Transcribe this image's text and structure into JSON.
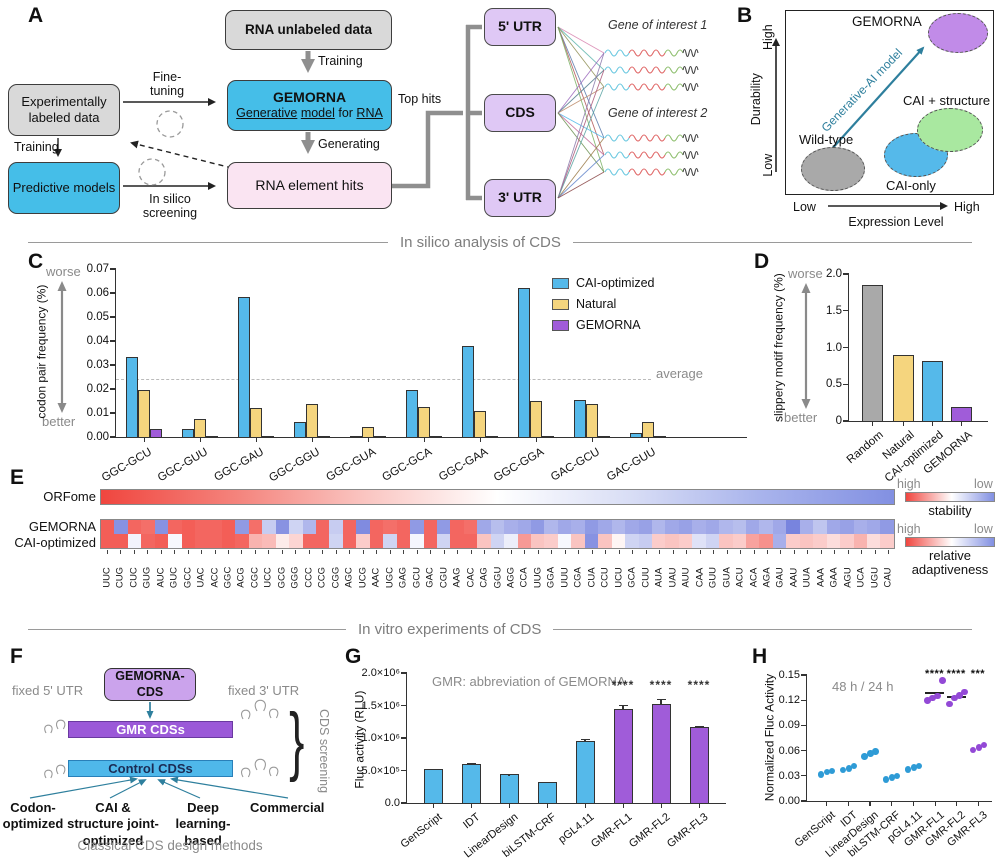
{
  "section_headers": {
    "in_silico": "In silico analysis of CDS",
    "in_vitro": "In vitro experiments of CDS"
  },
  "panels": {
    "a": {
      "label": "A",
      "boxes": {
        "rna_unlabeled": "RNA unlabeled data",
        "experimentally_labeled": "Experimentally labeled data",
        "gemorna_title": "GEMORNA",
        "gemorna_sub": {
          "w1": "Generative",
          "w2": "model",
          "w3": "for",
          "w4": "RNA"
        },
        "predictive_models": "Predictive models",
        "rna_element_hits": "RNA element hits",
        "utr5": "5' UTR",
        "cds": "CDS",
        "utr3": "3' UTR"
      },
      "labels": {
        "training_top": "Training",
        "fine_tuning": "Fine-tuning",
        "training_left": "Training",
        "generating": "Generating",
        "in_silico_screening": "In silico screening",
        "top_hits": "Top hits",
        "gene1": "Gene of interest 1",
        "gene2": "Gene of interest 2"
      }
    },
    "b": {
      "label": "B",
      "ellipses": [
        {
          "name": "wild-type",
          "label": "Wild-type",
          "fill": "#A9A9A9"
        },
        {
          "name": "cai-only",
          "label": "CAI-only",
          "fill": "#55B9EA"
        },
        {
          "name": "cai-structure",
          "label": "CAI + structure",
          "fill": "#A9E8A0"
        },
        {
          "name": "gemorna",
          "label": "GEMORNA",
          "fill": "#C18BE8"
        }
      ],
      "arrow_label": "Generative-AI model",
      "x_low": "Low",
      "x_high": "High",
      "x_label": "Expression Level",
      "y_low": "Low",
      "y_high": "High",
      "y_label": "Durability"
    },
    "c": {
      "label": "C",
      "worse": "worse",
      "better": "better",
      "average_label": "average",
      "chart_data": {
        "type": "bar",
        "ylabel": "codon pair frequency (%)",
        "ylim": [
          0,
          0.07
        ],
        "yticks": [
          "0.00",
          "0.01",
          "0.02",
          "0.03",
          "0.04",
          "0.05",
          "0.06",
          "0.07"
        ],
        "average_line": 0.024,
        "categories": [
          "GGC-GCU",
          "GGC-GUU",
          "GGC-GAU",
          "GGC-GGU",
          "GGC-GUA",
          "GGC-GCA",
          "GGC-GAA",
          "GGC-GGA",
          "GAC-GCU",
          "GAC-GUU"
        ],
        "series": [
          {
            "name": "CAI-optimized",
            "color": "#55B9EA",
            "values": [
              0.0335,
              0.0033,
              0.0585,
              0.0063,
              0.0003,
              0.0197,
              0.038,
              0.062,
              0.0155,
              0.0015
            ]
          },
          {
            "name": "Natural",
            "color": "#F5D57E",
            "values": [
              0.0195,
              0.0077,
              0.0122,
              0.0137,
              0.0042,
              0.0127,
              0.0108,
              0.0148,
              0.0138,
              0.0063
            ]
          },
          {
            "name": "GEMORNA",
            "color": "#A05CD9",
            "values": [
              0.0033,
              0.0002,
              0.0002,
              0.0002,
              0.0002,
              0.0002,
              0.0003,
              0.0003,
              0.0004,
              0.0002
            ]
          }
        ],
        "legend_position": "upper right"
      }
    },
    "d": {
      "label": "D",
      "worse": "worse",
      "better": "better",
      "chart_data": {
        "type": "bar",
        "ylabel": "slippery motif frequency (%)",
        "ylim": [
          0,
          2.0
        ],
        "yticks": [
          "0",
          "0.5",
          "1.0",
          "1.5",
          "2.0"
        ],
        "categories": [
          "Random",
          "Natural",
          "CAI-optimized",
          "GEMORNA"
        ],
        "values": [
          1.85,
          0.9,
          0.82,
          0.19
        ],
        "colors": [
          "#A9A9A9",
          "#F5D57E",
          "#55B9EA",
          "#A05CD9"
        ]
      }
    },
    "e": {
      "label": "E",
      "row_labels": [
        "ORFome",
        "GEMORNA",
        "CAI-optimized"
      ],
      "legend": {
        "stability": {
          "title": "stability",
          "high": "high",
          "low": "low"
        },
        "adaptiveness": {
          "title": "relative adaptiveness",
          "high": "high",
          "low": "low"
        }
      },
      "chart_data": {
        "type": "heatmap",
        "codons": [
          "UUC",
          "CUG",
          "CUC",
          "GUG",
          "AUC",
          "GUC",
          "GCC",
          "UAC",
          "ACC",
          "GGC",
          "ACG",
          "CGC",
          "UCC",
          "GCG",
          "GGG",
          "CCC",
          "CCG",
          "CGG",
          "AGC",
          "UCG",
          "AAC",
          "UGC",
          "GAG",
          "GCU",
          "GAC",
          "CGU",
          "AAG",
          "CAC",
          "CAG",
          "GGU",
          "AGG",
          "CCA",
          "UUG",
          "GGA",
          "UUU",
          "CGA",
          "CUA",
          "CCU",
          "UCU",
          "GCA",
          "CUU",
          "AUA",
          "UAU",
          "AUU",
          "CAA",
          "GUU",
          "GUA",
          "ACU",
          "ACA",
          "AGA",
          "GAU",
          "AAU",
          "UUA",
          "AAA",
          "GAA",
          "AGU",
          "UCA",
          "UGU",
          "CAU"
        ],
        "orfome_gradient": [
          "#F0463F",
          "#F4837C",
          "#FAC4C0",
          "#FFFFFF",
          "#D8DDF5",
          "#A9B4EC",
          "#8290E2"
        ],
        "gemorna": [
          0.95,
          -0.75,
          0.9,
          0.85,
          -0.75,
          0.9,
          0.95,
          0.9,
          0.9,
          0.95,
          -0.7,
          0.85,
          -0.35,
          -0.75,
          -0.3,
          -0.5,
          0.9,
          -0.35,
          0.9,
          -0.8,
          0.9,
          0.85,
          0.9,
          -0.7,
          0.9,
          -0.7,
          0.9,
          0.85,
          -0.6,
          -0.45,
          -0.55,
          -0.6,
          -0.7,
          -0.5,
          -0.6,
          -0.55,
          -0.7,
          -0.6,
          -0.5,
          -0.6,
          -0.65,
          -0.5,
          -0.6,
          -0.65,
          -0.55,
          -0.6,
          -0.5,
          -0.45,
          -0.6,
          -0.5,
          -0.6,
          -0.85,
          -0.55,
          -0.4,
          -0.6,
          -0.65,
          -0.55,
          -0.6,
          -0.7
        ],
        "cai_optimized": [
          0.95,
          0.95,
          -0.08,
          0.9,
          0.95,
          -0.05,
          0.95,
          0.9,
          0.9,
          0.95,
          0.9,
          0.45,
          0.4,
          0.12,
          0.25,
          0.9,
          0.9,
          -0.3,
          0.9,
          0.3,
          0.9,
          -0.3,
          0.9,
          -0.06,
          0.9,
          -0.3,
          0.9,
          0.9,
          0.35,
          -0.3,
          -0.12,
          0.6,
          0.35,
          0.3,
          -0.05,
          0.35,
          -0.75,
          0.35,
          0.06,
          -0.3,
          -0.35,
          0.3,
          0.35,
          0.3,
          -0.2,
          -0.3,
          0.35,
          0.3,
          0.55,
          0.65,
          -0.55,
          0.3,
          0.35,
          0.3,
          0.2,
          0.3,
          0.45,
          0.2,
          0.3
        ]
      }
    },
    "f": {
      "label": "F",
      "fixed_5utr": "fixed 5' UTR",
      "fixed_3utr": "fixed 3' UTR",
      "gemorna_cds": "GEMORNA-CDS",
      "gmr_bar": "GMR CDSs",
      "control_bar": "Control CDSs",
      "brace_glyph": "}",
      "brace_label": "CDS screening",
      "methods": [
        "Codon-optimized",
        "CAI & structure joint-optimized",
        "Deep learning-based",
        "Commercial"
      ],
      "caption": "Classical CDS design methods"
    },
    "g": {
      "label": "G",
      "note": "GMR: abbreviation of GEMORNA",
      "chart_data": {
        "type": "bar",
        "ylabel": "Fluc activity (RLU)",
        "ylim": [
          0,
          2000000
        ],
        "yticks": [
          "0.0",
          "5.0×10⁵",
          "1.0×10⁶",
          "1.5×10⁶",
          "2.0×10⁶"
        ],
        "categories": [
          "GenScript",
          "IDT",
          "LinearDesign",
          "biLSTM-CRF",
          "pGL4.11",
          "GMR-FL1",
          "GMR-FL2",
          "GMR-FL3"
        ],
        "values": [
          520000,
          600000,
          440000,
          320000,
          950000,
          1450000,
          1520000,
          1170000
        ],
        "errors": [
          15000,
          20000,
          12000,
          15000,
          40000,
          70000,
          90000,
          20000
        ],
        "colors": [
          "#55B9EA",
          "#55B9EA",
          "#55B9EA",
          "#55B9EA",
          "#55B9EA",
          "#A05CD9",
          "#A05CD9",
          "#A05CD9"
        ],
        "significance": [
          "",
          "",
          "",
          "",
          "",
          "****",
          "****",
          "****"
        ]
      }
    },
    "h": {
      "label": "H",
      "note": "48 h / 24 h",
      "chart_data": {
        "type": "scatter",
        "ylabel": "Normalized Fluc Activity",
        "ylim": [
          0,
          0.15
        ],
        "yticks": [
          "0.00",
          "0.03",
          "0.06",
          "0.09",
          "0.12",
          "0.15"
        ],
        "categories": [
          "GenScript",
          "IDT",
          "LinearDesign",
          "biLSTM-CRF",
          "pGL4.11",
          "GMR-FL1",
          "GMR-FL2",
          "GMR-FL3"
        ],
        "points": [
          [
            0.033,
            0.036,
            0.037
          ],
          [
            0.038,
            0.04,
            0.043
          ],
          [
            0.054,
            0.058,
            0.06
          ],
          [
            0.027,
            0.029,
            0.031
          ],
          [
            0.039,
            0.041,
            0.043
          ],
          [
            0.121,
            0.124,
            0.126,
            0.145
          ],
          [
            0.117,
            0.124,
            0.127,
            0.131
          ],
          [
            0.062,
            0.065,
            0.068
          ]
        ],
        "means": [
          null,
          null,
          null,
          null,
          null,
          0.13,
          0.125,
          null
        ],
        "colors": [
          "#2E9BD6",
          "#2E9BD6",
          "#2E9BD6",
          "#2E9BD6",
          "#2E9BD6",
          "#9349D6",
          "#9349D6",
          "#9349D6"
        ],
        "significance": [
          "",
          "",
          "",
          "",
          "",
          "****",
          "****",
          "***"
        ]
      }
    }
  }
}
